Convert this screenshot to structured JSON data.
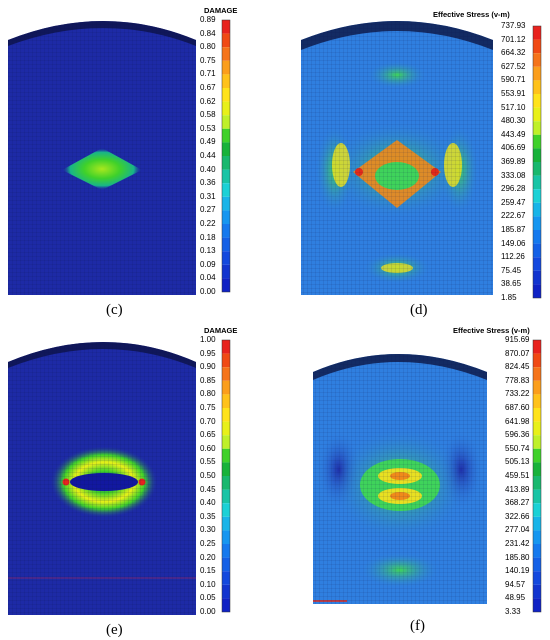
{
  "panels": {
    "c": {
      "caption": "(c)",
      "legend_title": "DAMAGE",
      "ticks": [
        "0.89",
        "0.84",
        "0.80",
        "0.75",
        "0.71",
        "0.67",
        "0.62",
        "0.58",
        "0.53",
        "0.49",
        "0.44",
        "0.40",
        "0.36",
        "0.31",
        "0.27",
        "0.22",
        "0.18",
        "0.13",
        "0.09",
        "0.04",
        "0.00"
      ]
    },
    "d": {
      "caption": "(d)",
      "legend_title": "Effective Stress (v-m)",
      "ticks": [
        "737.93",
        "701.12",
        "664.32",
        "627.52",
        "590.71",
        "553.91",
        "517.10",
        "480.30",
        "443.49",
        "406.69",
        "369.89",
        "333.08",
        "296.28",
        "259.47",
        "222.67",
        "185.87",
        "149.06",
        "112.26",
        "75.45",
        "38.65",
        "1.85"
      ]
    },
    "e": {
      "caption": "(e)",
      "legend_title": "DAMAGE",
      "ticks": [
        "1.00",
        "0.95",
        "0.90",
        "0.85",
        "0.80",
        "0.75",
        "0.70",
        "0.65",
        "0.60",
        "0.55",
        "0.50",
        "0.45",
        "0.40",
        "0.35",
        "0.30",
        "0.25",
        "0.20",
        "0.15",
        "0.10",
        "0.05",
        "0.00"
      ]
    },
    "f": {
      "caption": "(f)",
      "legend_title": "Effective Stress (v-m)",
      "ticks": [
        "915.69",
        "870.07",
        "824.45",
        "778.83",
        "733.22",
        "687.60",
        "641.98",
        "596.36",
        "550.74",
        "505.13",
        "459.51",
        "413.89",
        "368.27",
        "322.66",
        "277.04",
        "231.42",
        "185.80",
        "140.19",
        "94.57",
        "48.95",
        "3.33"
      ]
    }
  },
  "colors": {
    "colorbar": [
      "#e8231e",
      "#f04a14",
      "#f5741a",
      "#fb9e1c",
      "#ffc21a",
      "#ffe31a",
      "#e8f019",
      "#bff029",
      "#3fd12a",
      "#18b23a",
      "#19b86e",
      "#19c4a6",
      "#1bd1d6",
      "#18b4e8",
      "#1696f0",
      "#1579ee",
      "#1460e6",
      "#1348de",
      "#1234cf",
      "#1022c4",
      "#0f10b8"
    ],
    "vessel_dark": "#1d2aa6",
    "mesh_line": "#0a0f4a",
    "stress_base": "#2f7fe0",
    "stress_green": "#3fd35b",
    "stress_yellow": "#e8e022",
    "stress_orange": "#f08a1a",
    "stress_red": "#e22a1a"
  }
}
